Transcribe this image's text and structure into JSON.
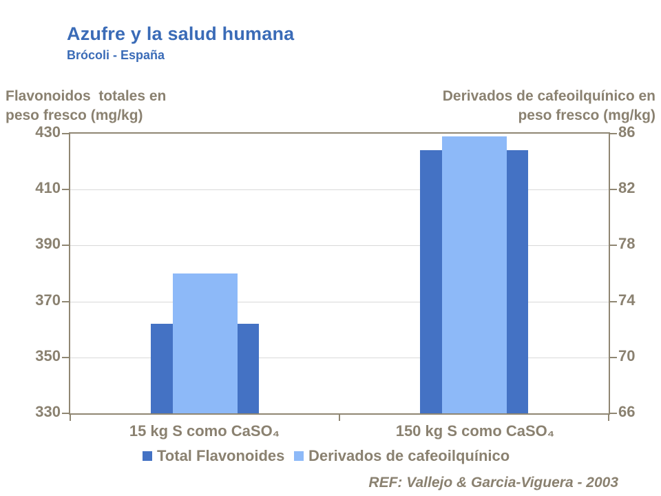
{
  "slide": {
    "title": "Azufre y la salud humana",
    "subtitle": "Brócoli - España",
    "ref": "REF: Vallejo & Garcia-Viguera - 2003"
  },
  "chart_data": {
    "type": "bar",
    "title": "Azufre y la salud humana — Brócoli - España",
    "categories": [
      "15 kg S como CaSO₄",
      "150 kg S como CaSO₄"
    ],
    "series": [
      {
        "name": "Total Flavonoides",
        "axis": "left",
        "color": "#4472C4",
        "values": [
          362,
          424
        ]
      },
      {
        "name": "Derivados de cafeoilquínico",
        "axis": "right",
        "color": "#8DB9F8",
        "values": [
          76,
          85.8
        ]
      }
    ],
    "left_axis": {
      "title_line1": "Flavonoidos  totales en",
      "title_line2": "peso fresco (mg/kg)",
      "min": 330,
      "max": 430,
      "step": 20,
      "ticks": [
        330,
        350,
        370,
        390,
        410,
        430
      ]
    },
    "right_axis": {
      "title_line1": "Derivados de cafeoilquínico en",
      "title_line2": "peso fresco (mg/kg)",
      "min": 66,
      "max": 86,
      "step": 4,
      "ticks": [
        66,
        70,
        74,
        78,
        82,
        86
      ]
    },
    "grid": true,
    "legend_position": "bottom",
    "colors": {
      "frame": "#8F8672",
      "gridline": "#D9D9D9",
      "axis_text": "#8A8170",
      "title_blue": "#3A6BB7"
    }
  }
}
